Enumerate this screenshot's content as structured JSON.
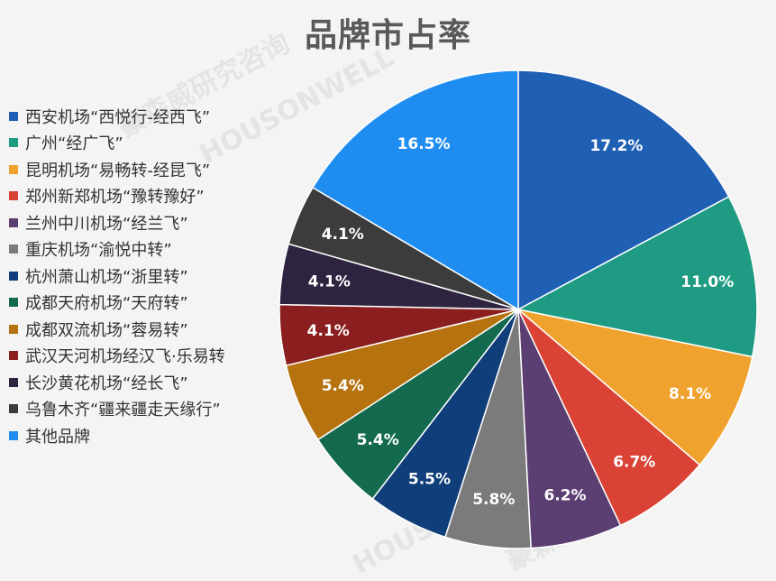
{
  "chart_data": {
    "type": "pie",
    "title": "品牌市占率",
    "legend_position": "left",
    "slices": [
      {
        "name": "西安机场“西悦行-经西飞”",
        "value": 17.2,
        "label": "17.2%",
        "color": "#1f5fb4"
      },
      {
        "name": "广州“经广飞”",
        "value": 11.0,
        "label": "11.0%",
        "color": "#1e9b82"
      },
      {
        "name": "昆明机场“易畅转-经昆飞”",
        "value": 8.1,
        "label": "8.1%",
        "color": "#f0a22e"
      },
      {
        "name": "郑州新郑机场“豫转豫好”",
        "value": 6.7,
        "label": "6.7%",
        "color": "#d94234"
      },
      {
        "name": "兰州中川机场“经兰飞”",
        "value": 6.2,
        "label": "6.2%",
        "color": "#5b3f72"
      },
      {
        "name": "重庆机场“渝悦中转”",
        "value": 5.8,
        "label": "5.8%",
        "color": "#7b7b7b"
      },
      {
        "name": "杭州萧山机场“浙里转”",
        "value": 5.5,
        "label": "5.5%",
        "color": "#0f3e7a"
      },
      {
        "name": "成都天府机场“天府转”",
        "value": 5.4,
        "label": "5.4%",
        "color": "#146a4e"
      },
      {
        "name": "成都双流机场“蓉易转”",
        "value": 5.4,
        "label": "5.4%",
        "color": "#b5720e"
      },
      {
        "name": "武汉天河机场经汉飞·乐易转",
        "value": 4.1,
        "label": "4.1%",
        "color": "#8b1e1e"
      },
      {
        "name": "长沙黄花机场“经长飞”",
        "value": 4.1,
        "label": "4.1%",
        "color": "#2e2440"
      },
      {
        "name": "乌鲁木齐“疆来疆走天缘行”",
        "value": 4.1,
        "label": "4.1%",
        "color": "#3c3c3c"
      },
      {
        "name": "其他品牌",
        "value": 16.5,
        "label": "16.5%",
        "color": "#1f8df0"
      }
    ]
  },
  "watermark": {
    "cn": "豪森威研究咨询",
    "en": "HOUSONWELL"
  }
}
